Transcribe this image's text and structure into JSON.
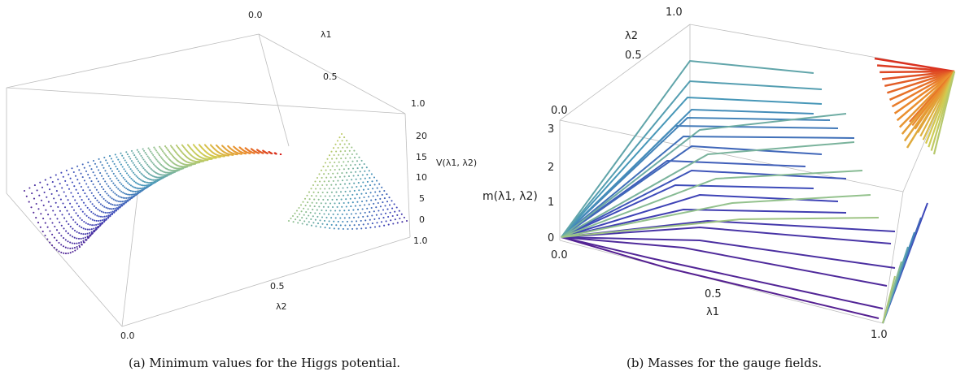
{
  "figure": {
    "panels": [
      {
        "caption": "(a) Minimum values for the Higgs potential.",
        "x_axis": {
          "label": "λ1",
          "ticks": [
            "0.0",
            "0.5",
            "1.0"
          ]
        },
        "y_axis": {
          "label": "λ2",
          "ticks": [
            "0.0",
            "0.5",
            "1.0"
          ]
        },
        "z_axis": {
          "label": "V(λ1, λ2)",
          "ticks": [
            "0",
            "5",
            "10",
            "15",
            "20"
          ]
        }
      },
      {
        "caption": "(b) Masses for the gauge fields.",
        "x_axis": {
          "label": "λ1",
          "ticks": [
            "0.0",
            "0.5",
            "1.0"
          ]
        },
        "y_axis": {
          "label": "λ2",
          "ticks": [
            "0.0",
            "0.5",
            "1.0"
          ]
        },
        "z_axis": {
          "label": "m(λ1, λ2)",
          "ticks": [
            "0",
            "1",
            "2",
            "3"
          ]
        }
      }
    ]
  },
  "chart_data": [
    {
      "type": "scatter",
      "subtype": "3d-point-cloud",
      "caption": "(a) Minimum values for the Higgs potential.",
      "xlabel": "λ1",
      "ylabel": "λ2",
      "zlabel": "V(λ1, λ2)",
      "xlim": [
        0,
        1
      ],
      "ylim": [
        0,
        1
      ],
      "zlim": [
        0,
        22
      ],
      "colormap": "rainbow (purple → red) by V",
      "notes": "V rises from ~0 at λ1 ≈ 0 to ~21 at λ1 ≈ 0.5; small secondary region near λ1 ≈ 1.0 with V from 0 to ~20",
      "sampled_values": [
        {
          "x": 0.0,
          "y": 0.0,
          "z": 0
        },
        {
          "x": 0.1,
          "y": 0.5,
          "z": 1
        },
        {
          "x": 0.2,
          "y": 0.5,
          "z": 4
        },
        {
          "x": 0.3,
          "y": 0.5,
          "z": 8
        },
        {
          "x": 0.4,
          "y": 0.5,
          "z": 13
        },
        {
          "x": 0.5,
          "y": 0.5,
          "z": 21
        },
        {
          "x": 1.0,
          "y": 1.0,
          "z": 0
        },
        {
          "x": 0.85,
          "y": 1.0,
          "z": 20
        }
      ]
    },
    {
      "type": "line",
      "subtype": "3d-curves",
      "caption": "(b) Masses for the gauge fields.",
      "xlabel": "λ1",
      "ylabel": "λ2",
      "zlabel": "m(λ1, λ2)",
      "xlim": [
        0,
        1
      ],
      "ylim": [
        0,
        1
      ],
      "zlim": [
        0,
        3.2
      ],
      "colormap": "rainbow (purple → red) by m",
      "notes": "Many piecewise-linear curves fanning out from the origin (m = 0) to the far edges; maximum m ≈ 3.2 near λ1 = 0, λ2 = 1"
    }
  ]
}
